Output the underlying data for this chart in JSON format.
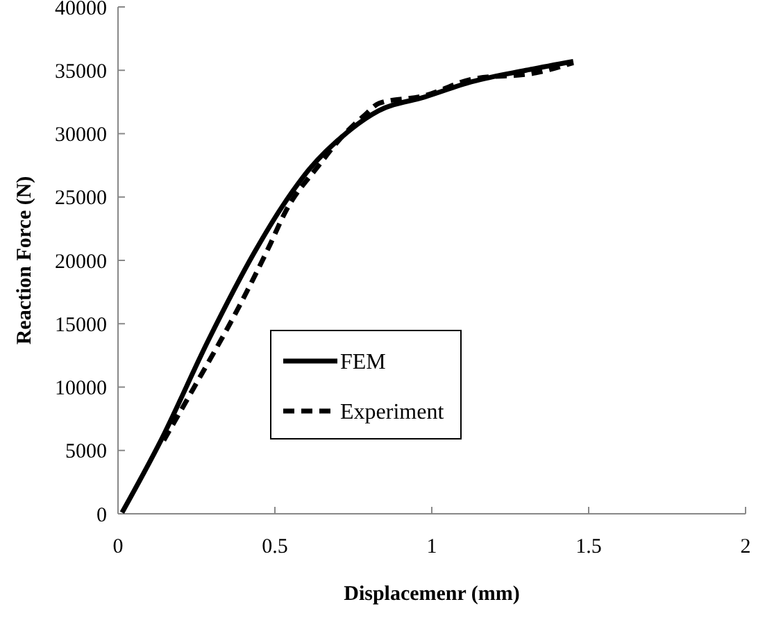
{
  "chart_data": {
    "type": "line",
    "xlabel": "Displacemenr (mm)",
    "ylabel": "Reaction Force (N)",
    "xlim": [
      0,
      2
    ],
    "xticks": [
      0,
      0.5,
      1,
      1.5,
      2
    ],
    "ylim": [
      0,
      40000
    ],
    "yticks": [
      0,
      5000,
      10000,
      15000,
      20000,
      25000,
      30000,
      35000,
      40000
    ],
    "legend": "left",
    "grid": false,
    "series": [
      {
        "name": "FEM",
        "color": "#000000",
        "line_style": "solid",
        "x": [
          0.013,
          0.137,
          0.288,
          0.434,
          0.522,
          0.61,
          0.73,
          0.83,
          0.978,
          1.128,
          1.3,
          1.451
        ],
        "values": [
          100,
          5800,
          13700,
          20600,
          24200,
          27200,
          30100,
          31800,
          32900,
          34100,
          35000,
          35700
        ]
      },
      {
        "name": "Experiment",
        "color": "#000000",
        "line_style": "dashed",
        "x": [
          0.146,
          0.243,
          0.389,
          0.478,
          0.535,
          0.64,
          0.712,
          0.788,
          0.832,
          0.978,
          1.128,
          1.332,
          1.451
        ],
        "values": [
          5800,
          10000,
          16500,
          20900,
          23900,
          27500,
          29700,
          31500,
          32400,
          33000,
          34300,
          34800,
          35600
        ]
      }
    ]
  }
}
